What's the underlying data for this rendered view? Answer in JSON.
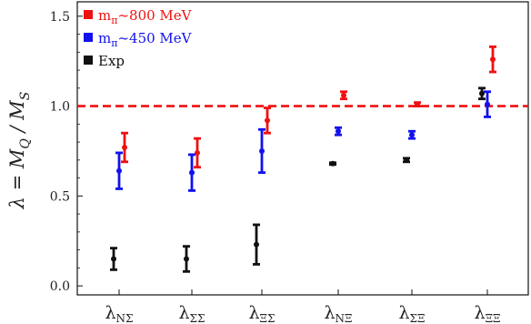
{
  "chart_data": {
    "type": "scatter",
    "title": "",
    "ylabel": "λ = M_Q / M_S",
    "ylabel_parts": {
      "lead": "λ = ",
      "m1": "M",
      "m1_sub": "Q",
      "sep": " / ",
      "m2": "M",
      "m2_sub": "S"
    },
    "ylim": [
      -0.05,
      1.58
    ],
    "y_ticks": [
      "0.0",
      "0.5",
      "1.0",
      "1.5"
    ],
    "y_tick_values": [
      0.0,
      0.5,
      1.0,
      1.5
    ],
    "grid": false,
    "legend_position": "top-left",
    "reference_line": {
      "y": 1.0,
      "style": "dashed",
      "color": "#ee1111"
    },
    "categories": [
      {
        "symbol": "λ",
        "sub": "NΣ"
      },
      {
        "symbol": "λ",
        "sub": "ΣΣ"
      },
      {
        "symbol": "λ",
        "sub": "ΞΣ"
      },
      {
        "symbol": "λ",
        "sub": "NΞ"
      },
      {
        "symbol": "λ",
        "sub": "ΣΞ"
      },
      {
        "symbol": "λ",
        "sub": "ΞΞ"
      }
    ],
    "series": [
      {
        "name": "m_π~800 MeV",
        "label_main": "m",
        "label_sub": "π",
        "label_rest": "~800 MeV",
        "color": "#ee1111",
        "values": [
          0.77,
          0.74,
          0.92,
          1.06,
          1.01,
          1.26
        ],
        "errors": [
          0.08,
          0.08,
          0.07,
          0.02,
          0.01,
          0.07
        ]
      },
      {
        "name": "m_π~450 MeV",
        "label_main": "m",
        "label_sub": "π",
        "label_rest": "~450 MeV",
        "color": "#1111ee",
        "values": [
          0.64,
          0.63,
          0.75,
          0.86,
          0.84,
          1.01
        ],
        "errors": [
          0.1,
          0.1,
          0.12,
          0.02,
          0.02,
          0.07
        ]
      },
      {
        "name": "Exp",
        "label_main": "Exp",
        "label_sub": "",
        "label_rest": "",
        "color": "#111111",
        "values": [
          0.15,
          0.15,
          0.23,
          0.68,
          0.7,
          1.07
        ],
        "errors": [
          0.06,
          0.07,
          0.11,
          0.005,
          0.01,
          0.03
        ]
      }
    ],
    "series_offsets": [
      0.25,
      0.0,
      -0.25
    ]
  }
}
